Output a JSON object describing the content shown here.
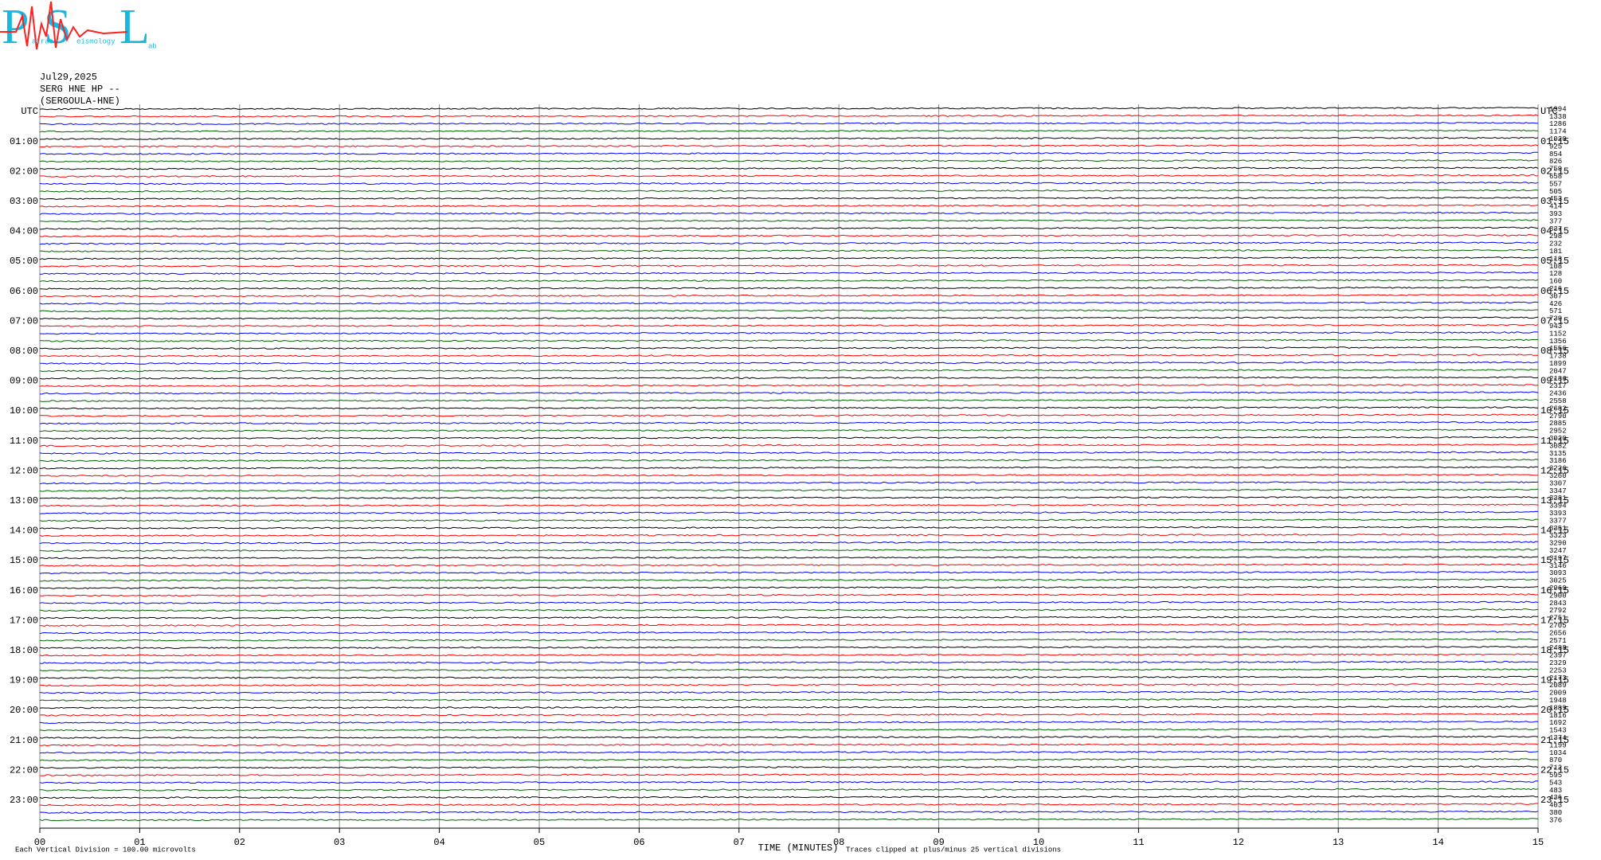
{
  "logo": {
    "letters": [
      "P",
      "S",
      "L"
    ],
    "small": [
      "atras",
      "eismology",
      "ab"
    ]
  },
  "header": {
    "date": "Jul29,2025",
    "station": "SERG HNE HP --",
    "name": "(SERGOULA-HNE)"
  },
  "left_labels": [
    "UTC",
    "01:00",
    "02:00",
    "03:00",
    "04:00",
    "05:00",
    "06:00",
    "07:00",
    "08:00",
    "09:00",
    "10:00",
    "11:00",
    "12:00",
    "13:00",
    "14:00",
    "15:00",
    "16:00",
    "17:00",
    "18:00",
    "19:00",
    "20:00",
    "21:00",
    "22:00",
    "23:00"
  ],
  "right_labels": [
    "UTC",
    "01:15",
    "02:15",
    "03:15",
    "04:15",
    "05:15",
    "06:15",
    "07:15",
    "08:15",
    "09:15",
    "10:15",
    "11:15",
    "12:15",
    "13:15",
    "14:15",
    "15:15",
    "16:15",
    "17:15",
    "18:15",
    "19:15",
    "20:15",
    "21:15",
    "22:15",
    "23:15"
  ],
  "trace_counts": [
    1994,
    1338,
    1286,
    1174,
    1020,
    925,
    854,
    826,
    759,
    658,
    557,
    505,
    453,
    414,
    393,
    377,
    337,
    298,
    232,
    181,
    118,
    108,
    128,
    160,
    216,
    307,
    426,
    571,
    739,
    943,
    1152,
    1356,
    1556,
    1738,
    1899,
    2047,
    2186,
    2317,
    2436,
    2558,
    2682,
    2790,
    2885,
    2952,
    3020,
    3082,
    3135,
    3186,
    3226,
    3260,
    3307,
    3347,
    3381,
    3394,
    3393,
    3377,
    3351,
    3323,
    3290,
    3247,
    3197,
    3146,
    3093,
    3025,
    2960,
    2900,
    2843,
    2792,
    2751,
    2705,
    2656,
    2571,
    2488,
    2397,
    2329,
    2253,
    2173,
    2089,
    2009,
    1948,
    1889,
    1816,
    1692,
    1543,
    1374,
    1199,
    1034,
    870,
    712,
    595,
    543,
    483,
    436,
    403,
    380,
    376
  ],
  "trace_colors": [
    "#000000",
    "#ff0000",
    "#0000ff",
    "#006400"
  ],
  "x_ticks": [
    "00",
    "01",
    "02",
    "03",
    "04",
    "05",
    "06",
    "07",
    "08",
    "09",
    "10",
    "11",
    "12",
    "13",
    "14",
    "15"
  ],
  "x_label": "TIME (MINUTES)",
  "footer": {
    "division": "Each Vertical Division =  100.00 microvolts",
    "clip": "Traces clipped at plus/minus 25 vertical divisions"
  }
}
